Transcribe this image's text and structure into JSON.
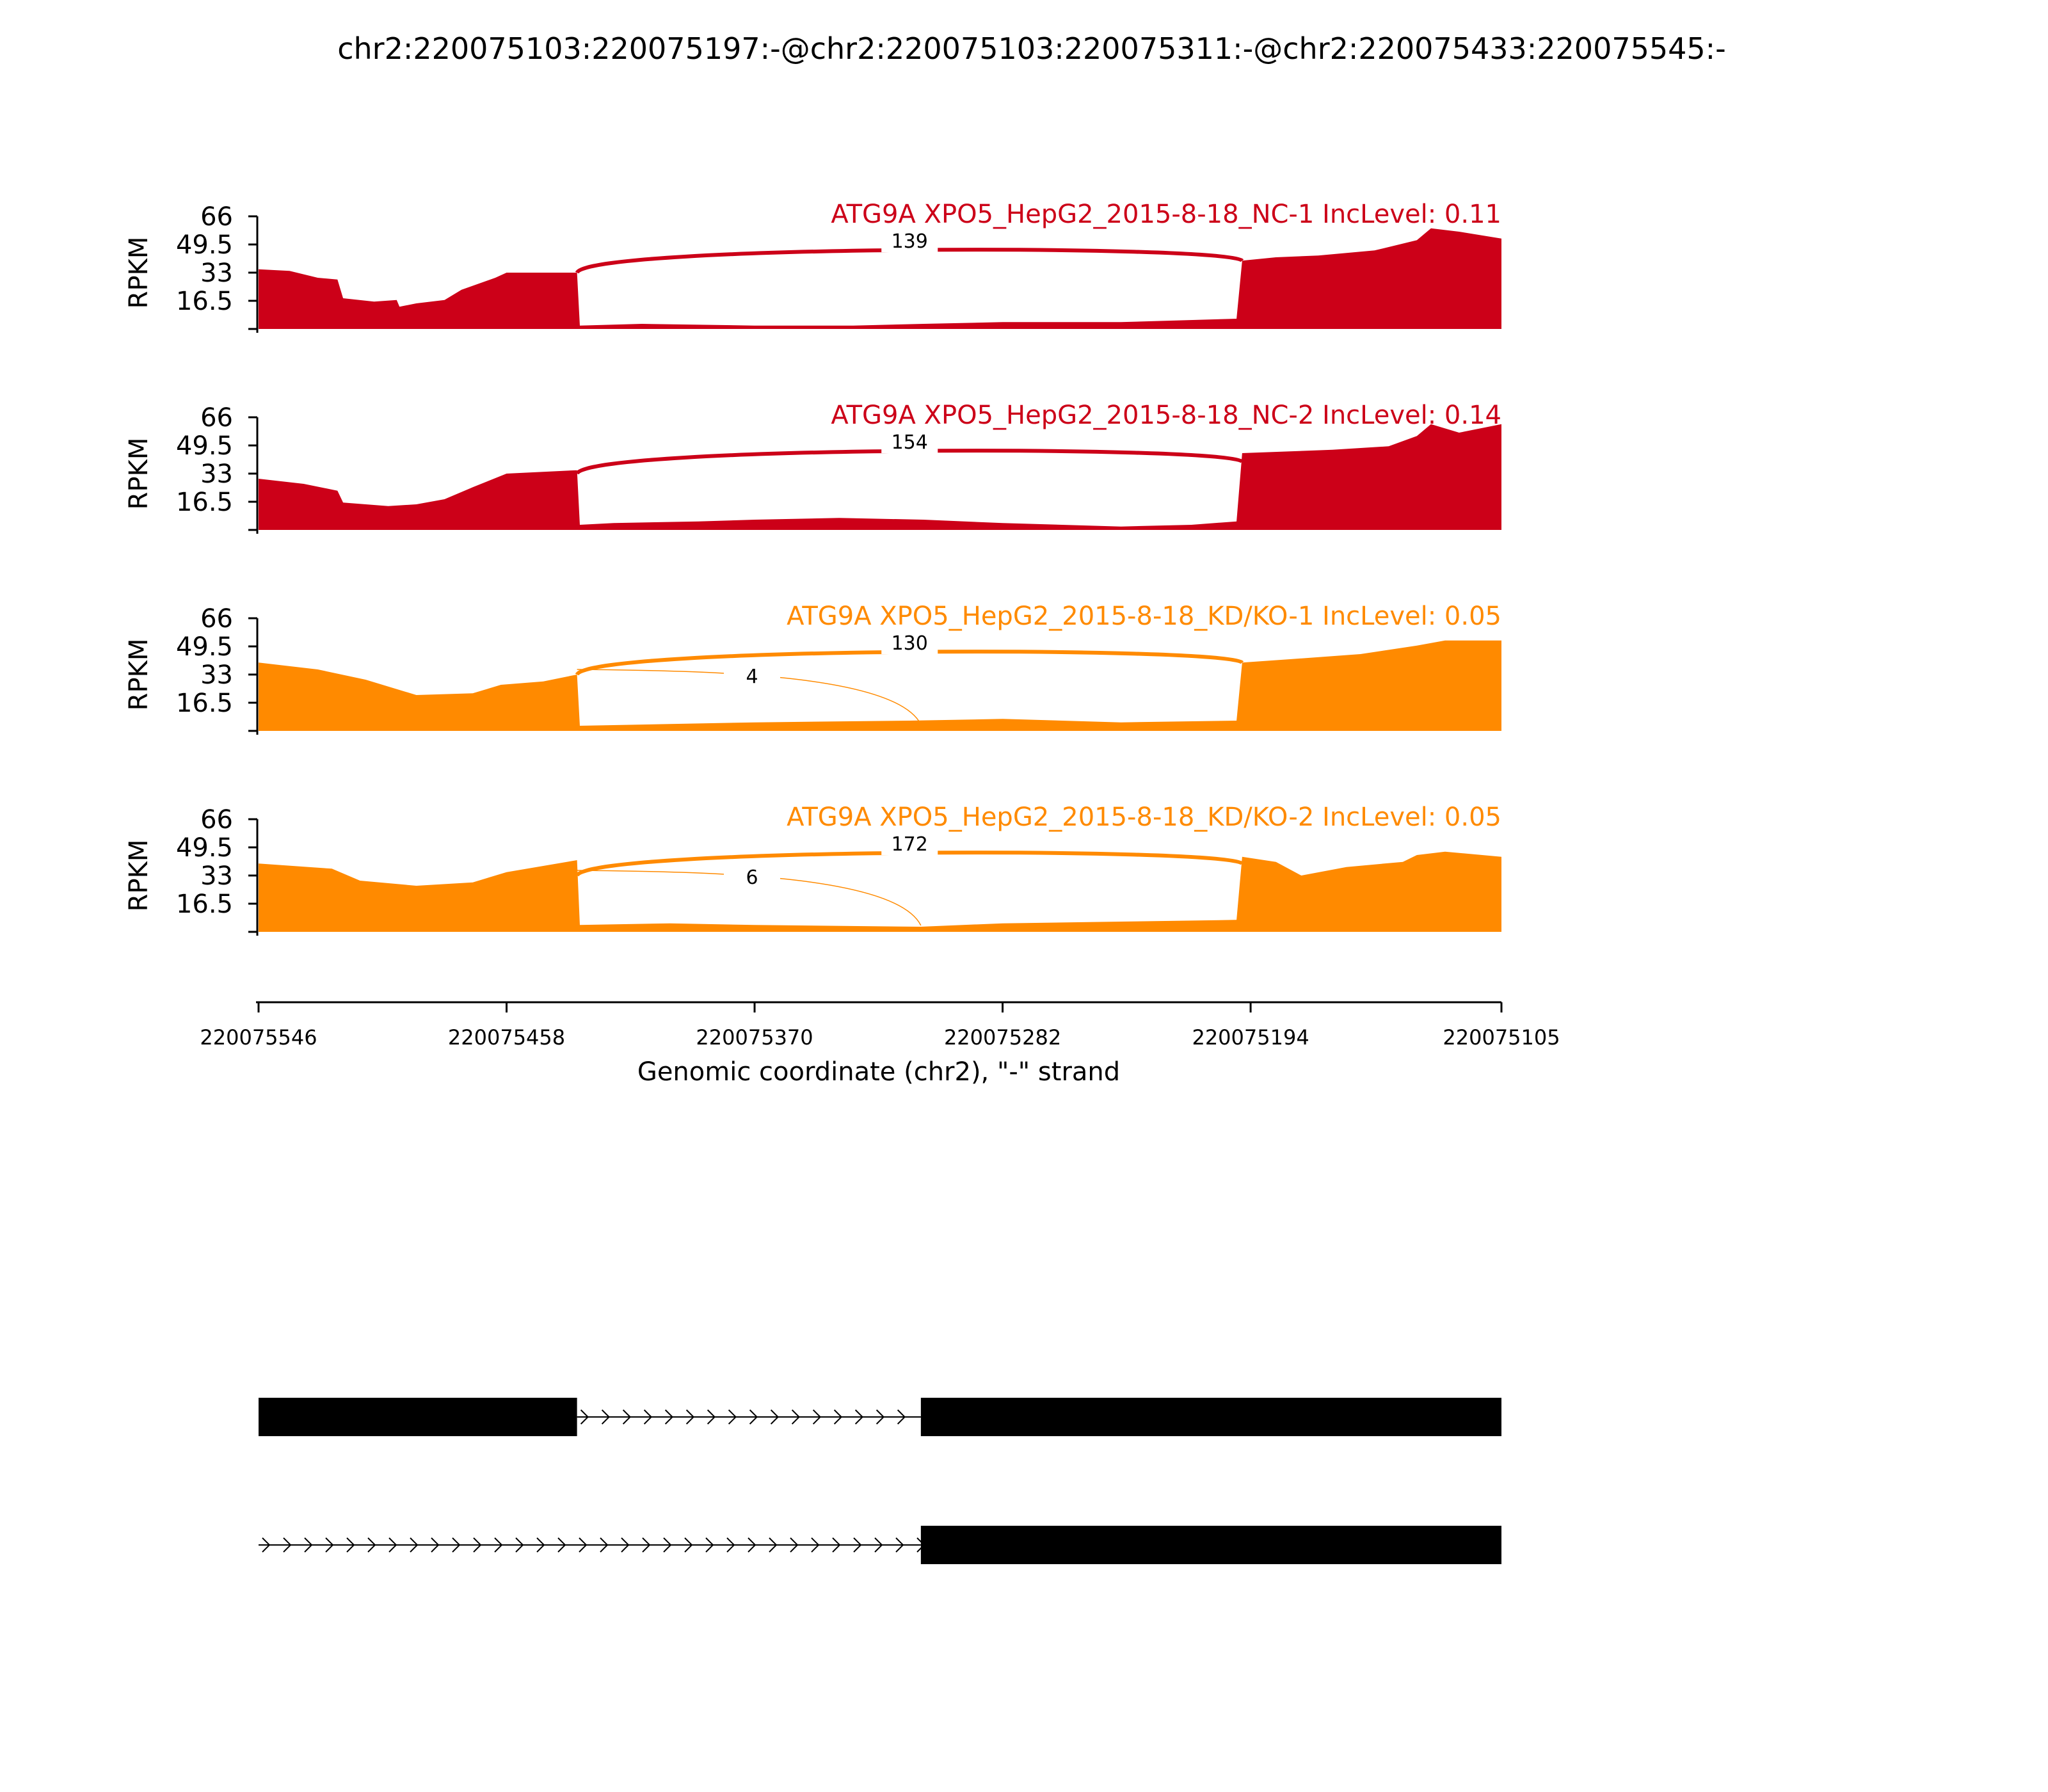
{
  "title": "chr2:220075103:220075197:-@chr2:220075103:220075311:-@chr2:220075433:220075545:-",
  "x_axis": {
    "label": "Genomic coordinate (chr2), \"-\" strand",
    "ticks": [
      "220075546",
      "220075458",
      "220075370",
      "220075282",
      "220075194",
      "220075105"
    ]
  },
  "y_axis": {
    "label": "RPKM",
    "ticks": [
      "66",
      "49.5",
      "33",
      "16.5"
    ]
  },
  "colors": {
    "nc": "#cc0018",
    "kd": "#ff8a00",
    "gene": "#000000"
  },
  "chart_data": {
    "type": "area",
    "title": "chr2:220075103:220075197:-@chr2:220075103:220075311:-@chr2:220075433:220075545:-",
    "xlabel": "Genomic coordinate (chr2), \"-\" strand",
    "ylabel": "RPKM",
    "xlim": [
      220075546,
      220075105
    ],
    "ylim": [
      0,
      66
    ],
    "x_ticks": [
      220075546,
      220075458,
      220075370,
      220075282,
      220075194,
      220075105
    ],
    "y_ticks": [
      16.5,
      33,
      49.5,
      66
    ],
    "series": [
      {
        "name": "ATG9A XPO5_HepG2_2015-8-18_NC-1 IncLevel: 0.11",
        "color_key": "nc",
        "coverage": [
          [
            220075546,
            35
          ],
          [
            220075535,
            34
          ],
          [
            220075525,
            30
          ],
          [
            220075518,
            29
          ],
          [
            220075516,
            18
          ],
          [
            220075505,
            16
          ],
          [
            220075497,
            17
          ],
          [
            220075496,
            13
          ],
          [
            220075490,
            15
          ],
          [
            220075480,
            17
          ],
          [
            220075474,
            23
          ],
          [
            220075462,
            30
          ],
          [
            220075458,
            33
          ],
          [
            220075433,
            33
          ],
          [
            220075432,
            2
          ],
          [
            220075410,
            3
          ],
          [
            220075370,
            2
          ],
          [
            220075335,
            2
          ],
          [
            220075310,
            3
          ],
          [
            220075282,
            4
          ],
          [
            220075240,
            4
          ],
          [
            220075199,
            6
          ],
          [
            220075197,
            40
          ],
          [
            220075185,
            42
          ],
          [
            220075170,
            43
          ],
          [
            220075150,
            46
          ],
          [
            220075135,
            52
          ],
          [
            220075130,
            59
          ],
          [
            220075120,
            57
          ],
          [
            220075105,
            53
          ]
        ],
        "junctions": [
          {
            "from": 220075433,
            "to": 220075197,
            "count": 139
          }
        ]
      },
      {
        "name": "ATG9A XPO5_HepG2_2015-8-18_NC-2 IncLevel: 0.14",
        "color_key": "nc",
        "coverage": [
          [
            220075546,
            30
          ],
          [
            220075530,
            27
          ],
          [
            220075518,
            23
          ],
          [
            220075516,
            16
          ],
          [
            220075500,
            14
          ],
          [
            220075490,
            15
          ],
          [
            220075480,
            18
          ],
          [
            220075470,
            25
          ],
          [
            220075458,
            33
          ],
          [
            220075433,
            35
          ],
          [
            220075432,
            3
          ],
          [
            220075420,
            4
          ],
          [
            220075390,
            5
          ],
          [
            220075370,
            6
          ],
          [
            220075340,
            7
          ],
          [
            220075310,
            6
          ],
          [
            220075282,
            4
          ],
          [
            220075240,
            2
          ],
          [
            220075215,
            3
          ],
          [
            220075199,
            5
          ],
          [
            220075197,
            45
          ],
          [
            220075180,
            46
          ],
          [
            220075165,
            47
          ],
          [
            220075145,
            49
          ],
          [
            220075135,
            55
          ],
          [
            220075130,
            62
          ],
          [
            220075120,
            57
          ],
          [
            220075105,
            62
          ]
        ],
        "junctions": [
          {
            "from": 220075433,
            "to": 220075197,
            "count": 154
          }
        ]
      },
      {
        "name": "ATG9A XPO5_HepG2_2015-8-18_KD/KO-1 IncLevel: 0.05",
        "color_key": "kd",
        "coverage": [
          [
            220075546,
            40
          ],
          [
            220075525,
            36
          ],
          [
            220075508,
            30
          ],
          [
            220075490,
            21
          ],
          [
            220075470,
            22
          ],
          [
            220075460,
            27
          ],
          [
            220075445,
            29
          ],
          [
            220075433,
            33
          ],
          [
            220075432,
            3
          ],
          [
            220075400,
            4
          ],
          [
            220075370,
            5
          ],
          [
            220075315,
            6
          ],
          [
            220075282,
            7
          ],
          [
            220075240,
            5
          ],
          [
            220075199,
            6
          ],
          [
            220075197,
            40
          ],
          [
            220075180,
            42
          ],
          [
            220075155,
            45
          ],
          [
            220075135,
            50
          ],
          [
            220075125,
            53
          ],
          [
            220075105,
            53
          ]
        ],
        "junctions": [
          {
            "from": 220075433,
            "to": 220075197,
            "count": 130
          },
          {
            "from": 220075433,
            "to": 220075311,
            "count": 4
          }
        ]
      },
      {
        "name": "ATG9A XPO5_HepG2_2015-8-18_KD/KO-2 IncLevel: 0.05",
        "color_key": "kd",
        "coverage": [
          [
            220075546,
            40
          ],
          [
            220075520,
            37
          ],
          [
            220075510,
            30
          ],
          [
            220075490,
            27
          ],
          [
            220075470,
            29
          ],
          [
            220075458,
            35
          ],
          [
            220075433,
            42
          ],
          [
            220075432,
            4
          ],
          [
            220075400,
            5
          ],
          [
            220075370,
            4
          ],
          [
            220075311,
            3
          ],
          [
            220075282,
            5
          ],
          [
            220075240,
            6
          ],
          [
            220075199,
            7
          ],
          [
            220075197,
            44
          ],
          [
            220075185,
            41
          ],
          [
            220075176,
            33
          ],
          [
            220075160,
            38
          ],
          [
            220075140,
            41
          ],
          [
            220075135,
            45
          ],
          [
            220075125,
            47
          ],
          [
            220075105,
            44
          ]
        ],
        "junctions": [
          {
            "from": 220075433,
            "to": 220075197,
            "count": 172
          },
          {
            "from": 220075433,
            "to": 220075311,
            "count": 6
          }
        ]
      }
    ],
    "isoforms": [
      {
        "exons": [
          [
            220075546,
            220075433
          ],
          [
            220075311,
            220075105
          ]
        ],
        "intron_arrows": true
      },
      {
        "exons": [
          [
            220075311,
            220075105
          ]
        ],
        "intron_arrows": true,
        "line_from": 220075546
      }
    ]
  }
}
